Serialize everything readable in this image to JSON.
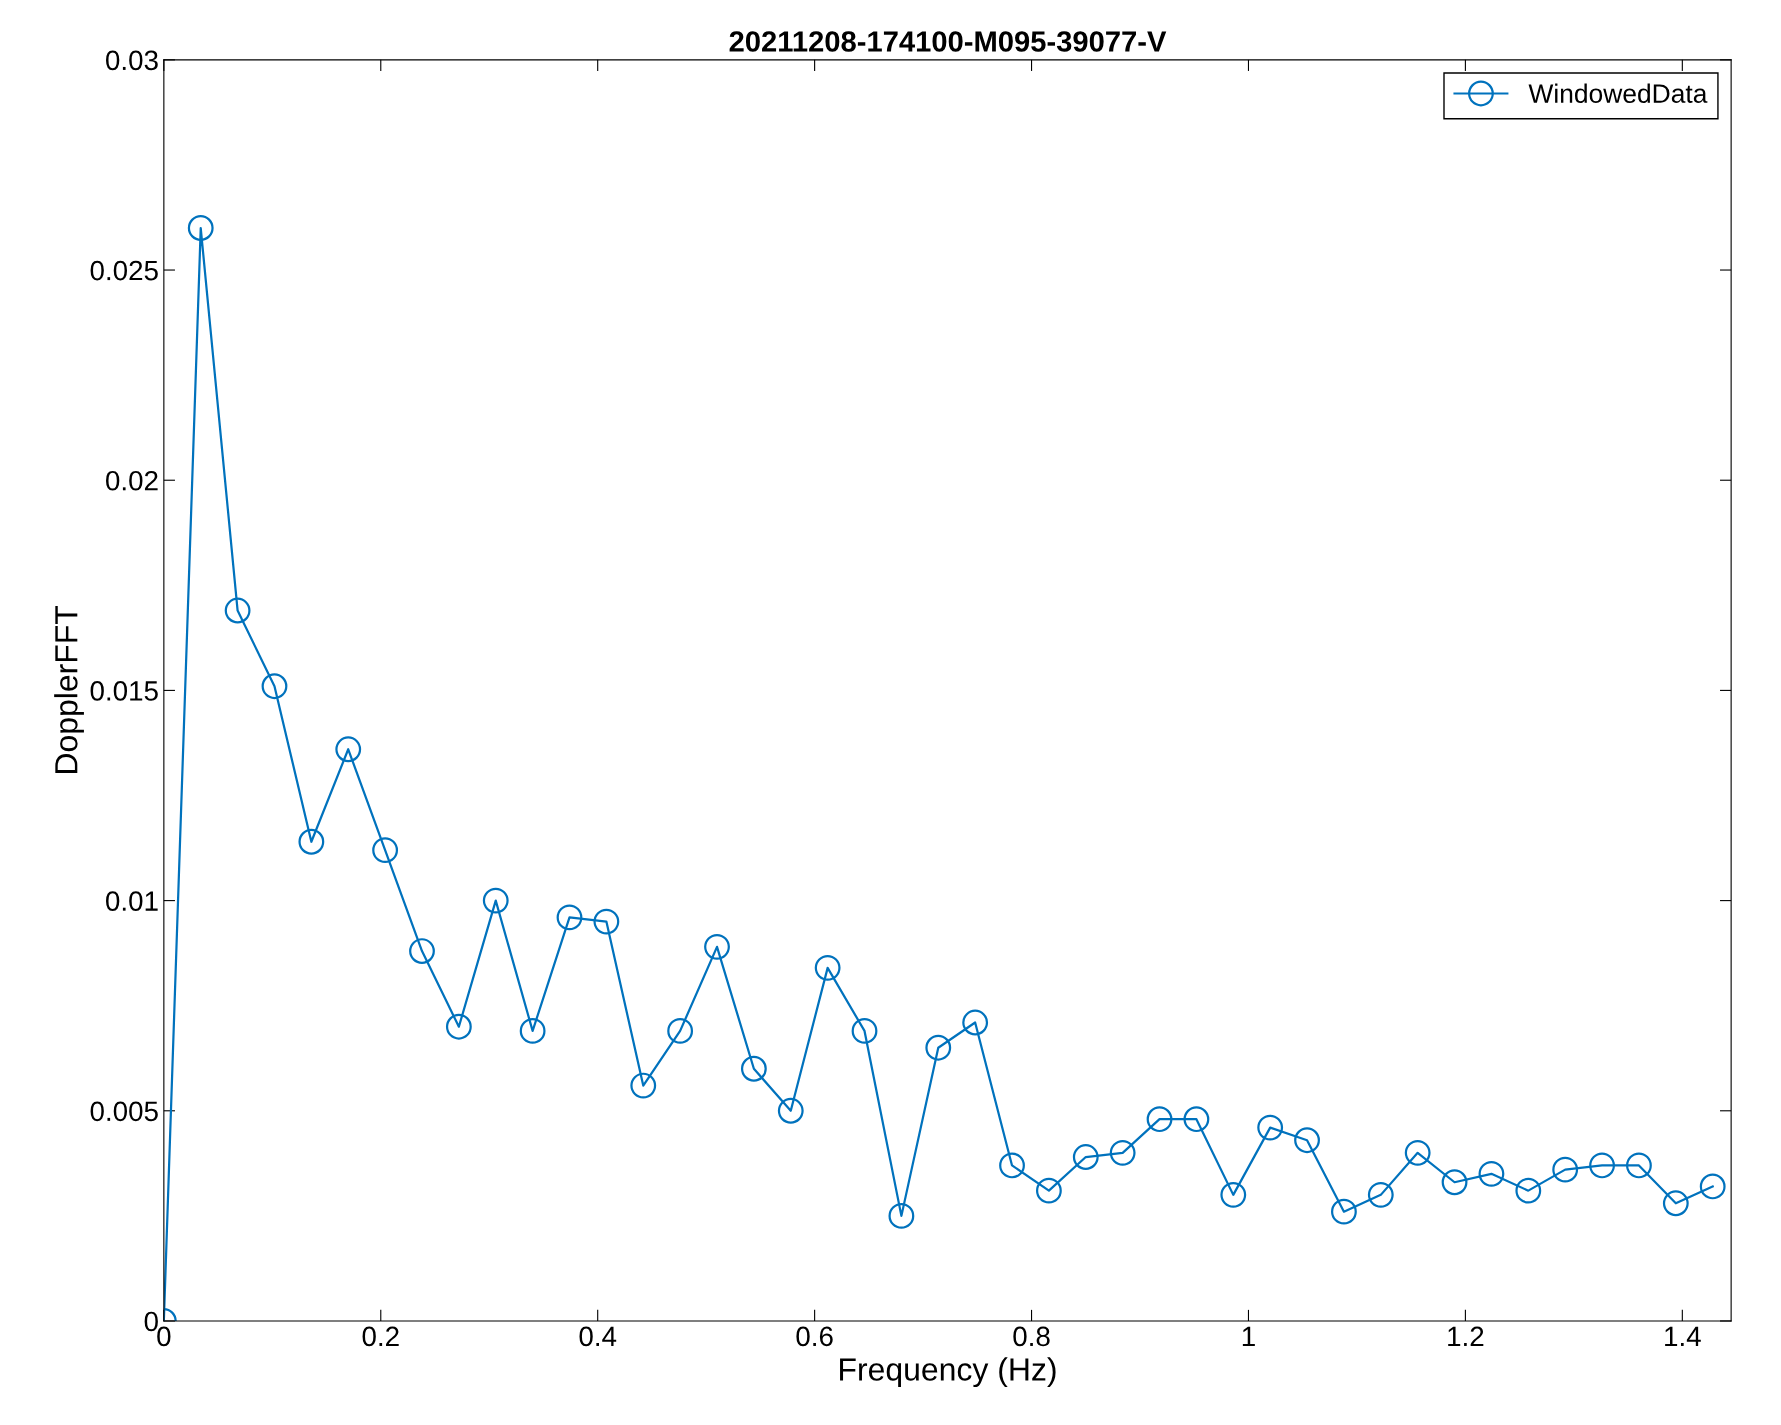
{
  "chart_data": {
    "type": "line",
    "title": "20211208-174100-M095-39077-V",
    "xlabel": "Frequency (Hz)",
    "ylabel": "DopplerFFT",
    "x": [
      0,
      0.034,
      0.068,
      0.102,
      0.136,
      0.17,
      0.204,
      0.238,
      0.272,
      0.306,
      0.34,
      0.374,
      0.408,
      0.442,
      0.476,
      0.51,
      0.544,
      0.578,
      0.612,
      0.646,
      0.68,
      0.714,
      0.748,
      0.782,
      0.816,
      0.85,
      0.884,
      0.918,
      0.952,
      0.986,
      1.02,
      1.054,
      1.088,
      1.122,
      1.156,
      1.19,
      1.224,
      1.258,
      1.292,
      1.326,
      1.36,
      1.394,
      1.428
    ],
    "series": [
      {
        "name": "WindowedData",
        "color": "#0072bd",
        "values": [
          0,
          0.026,
          0.0169,
          0.0151,
          0.0114,
          0.0136,
          0.0112,
          0.0088,
          0.007,
          0.01,
          0.0069,
          0.0096,
          0.0095,
          0.0056,
          0.0069,
          0.0089,
          0.006,
          0.005,
          0.0084,
          0.0069,
          0.0025,
          0.0065,
          0.0071,
          0.0037,
          0.0031,
          0.0039,
          0.004,
          0.0048,
          0.0048,
          0.003,
          0.0046,
          0.0043,
          0.0026,
          0.003,
          0.004,
          0.0033,
          0.0035,
          0.0031,
          0.0036,
          0.0037,
          0.0037,
          0.0028,
          0.0032
        ]
      }
    ],
    "xlim": [
      0,
      1.445
    ],
    "ylim": [
      0,
      0.03
    ],
    "xticks": [
      0,
      0.2,
      0.4,
      0.6,
      0.8,
      1,
      1.2,
      1.4
    ],
    "yticks": [
      0,
      0.005,
      0.01,
      0.015,
      0.02,
      0.025,
      0.03
    ],
    "marker": "circle",
    "line_style": "solid",
    "legend": "top right",
    "grid": false
  }
}
